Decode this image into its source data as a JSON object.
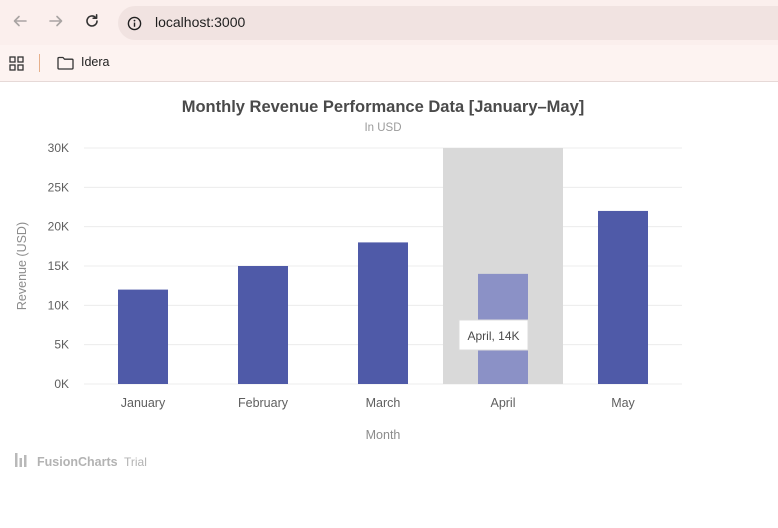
{
  "browser": {
    "url": "localhost:3000",
    "bookmarks": [
      {
        "label": "Idera"
      }
    ]
  },
  "chart_data": {
    "type": "bar",
    "title": "Monthly Revenue Performance Data [January–May]",
    "subtitle": "In USD",
    "xlabel": "Month",
    "ylabel": "Revenue (USD)",
    "categories": [
      "January",
      "February",
      "March",
      "April",
      "May"
    ],
    "values": [
      12000,
      15000,
      18000,
      14000,
      22000
    ],
    "ylim": [
      0,
      30000
    ],
    "y_ticks": [
      {
        "value": 0,
        "label": "0K"
      },
      {
        "value": 5000,
        "label": "5K"
      },
      {
        "value": 10000,
        "label": "10K"
      },
      {
        "value": 15000,
        "label": "15K"
      },
      {
        "value": 20000,
        "label": "20K"
      },
      {
        "value": 25000,
        "label": "25K"
      },
      {
        "value": 30000,
        "label": "30K"
      }
    ],
    "grid": true,
    "bar_color": "#4f5aa8",
    "hover_bar_color": "#8b91c6",
    "hover_band_color": "#d9d9d9",
    "hovered_index": 3,
    "tooltip": "April, 14K"
  },
  "watermark": {
    "brand": "FusionCharts",
    "suffix": "Trial"
  }
}
